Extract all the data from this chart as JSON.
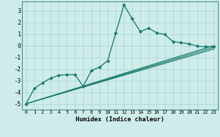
{
  "title": "",
  "xlabel": "Humidex (Indice chaleur)",
  "xlim": [
    -0.5,
    23.5
  ],
  "ylim": [
    -5.5,
    3.8
  ],
  "xticks": [
    0,
    1,
    2,
    3,
    4,
    5,
    6,
    7,
    8,
    9,
    10,
    11,
    12,
    13,
    14,
    15,
    16,
    17,
    18,
    19,
    20,
    21,
    22,
    23
  ],
  "yticks": [
    -5,
    -4,
    -3,
    -2,
    -1,
    0,
    1,
    2,
    3
  ],
  "bg_color": "#cdecea",
  "line_color": "#1a7a6e",
  "grid_color": "#aed8d4",
  "series_main": {
    "x": [
      0,
      1,
      2,
      3,
      4,
      5,
      6,
      7,
      8,
      9,
      10,
      11,
      12,
      13,
      14,
      15,
      16,
      17,
      18,
      19,
      20,
      21,
      22,
      23
    ],
    "y": [
      -5,
      -3.7,
      -3.2,
      -2.8,
      -2.55,
      -2.5,
      -2.5,
      -3.5,
      -2.15,
      -1.85,
      -1.3,
      1.1,
      3.5,
      2.3,
      1.2,
      1.5,
      1.1,
      0.95,
      0.35,
      0.25,
      0.15,
      -0.05,
      -0.1,
      -0.1
    ]
  },
  "straight_lines": [
    {
      "x": [
        0,
        23
      ],
      "y": [
        -5,
        -0.3
      ]
    },
    {
      "x": [
        0,
        23
      ],
      "y": [
        -5,
        -0.15
      ]
    },
    {
      "x": [
        0,
        23
      ],
      "y": [
        -5,
        0.0
      ]
    }
  ]
}
